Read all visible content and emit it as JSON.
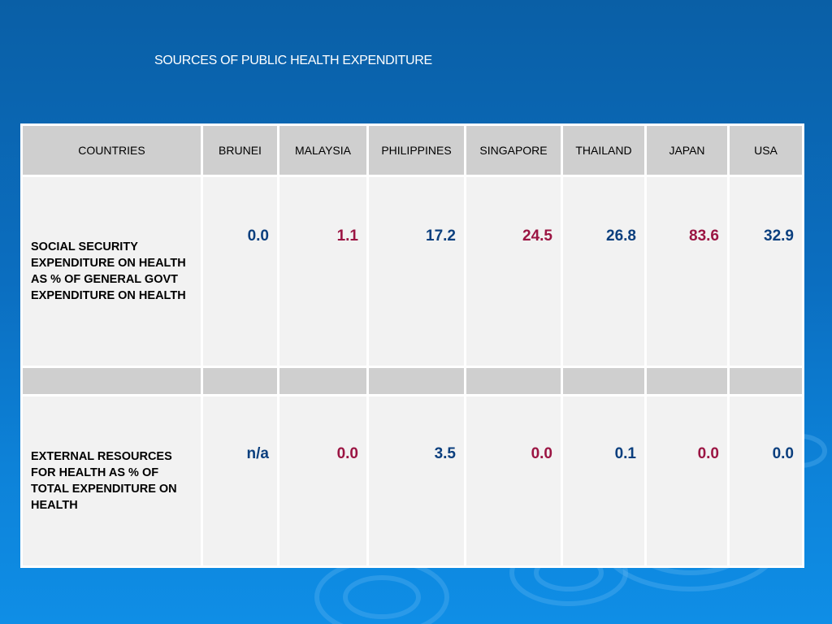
{
  "title": "SOURCES OF PUBLIC HEALTH EXPENDITURE",
  "colors": {
    "blue_value": "#0b3f7e",
    "red_value": "#9b1543",
    "header_bg": "#cfcfcf",
    "cell_bg": "#f2f2f2"
  },
  "table": {
    "headers": [
      "COUNTRIES",
      "BRUNEI",
      "MALAYSIA",
      "PHILIPPINES",
      "SINGAPORE",
      "THAILAND",
      "JAPAN",
      "USA"
    ],
    "rows": [
      {
        "label": "SOCIAL SECURITY EXPENDITURE ON HEALTH AS % OF GENERAL GOVT EXPENDITURE ON HEALTH",
        "values": [
          "0.0",
          "1.1",
          "17.2",
          "24.5",
          "26.8",
          "83.6",
          "32.9"
        ]
      },
      {
        "label": "EXTERNAL RESOURCES FOR HEALTH AS % OF TOTAL EXPENDITURE ON HEALTH",
        "values": [
          "n/a",
          "0.0",
          "3.5",
          "0.0",
          "0.1",
          "0.0",
          "0.0"
        ]
      }
    ]
  }
}
